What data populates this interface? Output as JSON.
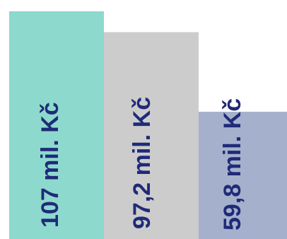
{
  "chart_data": {
    "type": "bar",
    "categories": [
      "",
      "",
      ""
    ],
    "values": [
      107,
      97.2,
      59.8
    ],
    "labels": [
      "107 mil. Kč",
      "97,2 mil. Kč",
      "59,8 mil. Kč"
    ],
    "colors": [
      "#8dd9cd",
      "#cccccc",
      "#a5b1cc"
    ],
    "label_color": "#1f2a78",
    "ylim": [
      0,
      107
    ],
    "grid": false,
    "legend": "none",
    "label_orientation": "vertical"
  }
}
